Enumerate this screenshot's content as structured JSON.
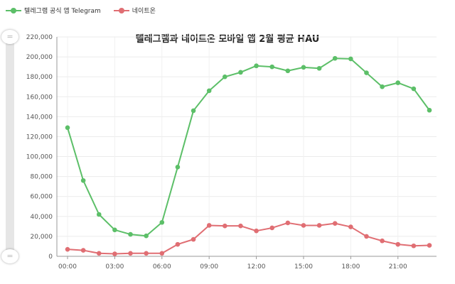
{
  "legend": {
    "items": [
      {
        "label": "텔레그램 공식 앱 Telegram",
        "color": "#5cbf68"
      },
      {
        "label": "네이트온",
        "color": "#e06e73"
      }
    ]
  },
  "zoom": {
    "handle_top_glyph": "=",
    "handle_bottom_glyph": "="
  },
  "chart_data": {
    "type": "line",
    "title": "텔레그램과 네이트온 모바일 앱 2월 평균 HAU",
    "xlabel": "",
    "ylabel": "",
    "x": [
      "00:00",
      "01:00",
      "02:00",
      "03:00",
      "04:00",
      "05:00",
      "06:00",
      "07:00",
      "08:00",
      "09:00",
      "10:00",
      "11:00",
      "12:00",
      "13:00",
      "14:00",
      "15:00",
      "16:00",
      "17:00",
      "18:00",
      "19:00",
      "20:00",
      "21:00",
      "22:00",
      "23:00"
    ],
    "xticks": [
      "00:00",
      "03:00",
      "06:00",
      "09:00",
      "12:00",
      "15:00",
      "18:00",
      "21:00"
    ],
    "ylim": [
      0,
      220000
    ],
    "yticks": [
      "0",
      "20,000",
      "40,000",
      "60,000",
      "80,000",
      "100,000",
      "120,000",
      "140,000",
      "160,000",
      "180,000",
      "200,000",
      "220,000"
    ],
    "grid": true,
    "legend_position": "top-left",
    "series": [
      {
        "name": "텔레그램 공식 앱 Telegram",
        "color": "#5cbf68",
        "values": [
          129000,
          76000,
          42000,
          26500,
          22000,
          20500,
          34000,
          89500,
          146000,
          166000,
          180000,
          184500,
          191000,
          190000,
          186000,
          189500,
          188500,
          198500,
          198000,
          184000,
          170000,
          174000,
          168000,
          146500
        ]
      },
      {
        "name": "네이트온",
        "color": "#e06e73",
        "values": [
          7000,
          6000,
          3000,
          2500,
          3000,
          3000,
          3000,
          12000,
          17000,
          31000,
          30500,
          30500,
          25500,
          28500,
          33500,
          31000,
          31000,
          33000,
          29500,
          20000,
          15500,
          12000,
          10500,
          11000
        ]
      }
    ]
  }
}
